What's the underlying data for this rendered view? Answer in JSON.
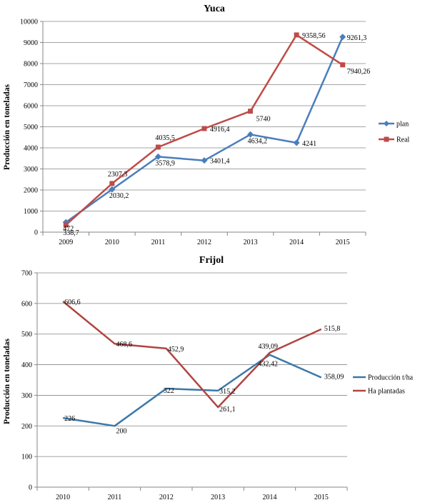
{
  "chart_data": [
    {
      "type": "line",
      "title": "Yuca",
      "xlabel": "",
      "ylabel": "Producción en toneladas",
      "categories": [
        "2009",
        "2010",
        "2011",
        "2012",
        "2013",
        "2014",
        "2015"
      ],
      "ylim": [
        0,
        10000
      ],
      "yticks": [
        "0",
        "1000",
        "2000",
        "3000",
        "4000",
        "5000",
        "6000",
        "7000",
        "8000",
        "9000",
        "10000"
      ],
      "grid": true,
      "legend": "right",
      "series": [
        {
          "name": "plan",
          "color": "#4a7ebb",
          "marker": "diamond",
          "values": [
            472,
            2030.2,
            3578.9,
            3401.4,
            4634.2,
            4241,
            9261.3
          ],
          "labels": [
            "472",
            "2030,2",
            "3578,9",
            "3401,4",
            "4634,2",
            "4241",
            "9261,3"
          ]
        },
        {
          "name": "Real",
          "color": "#be4b48",
          "marker": "square",
          "values": [
            338.7,
            2307.3,
            4035.5,
            4916.4,
            5740,
            9358.56,
            7940.26
          ],
          "labels": [
            "338,7",
            "2307,3",
            "4035,5",
            "4916,4",
            "5740",
            "9358,56",
            "7940,26"
          ]
        }
      ]
    },
    {
      "type": "line",
      "title": "Frijol",
      "xlabel": "",
      "ylabel": "Producción en toneladas",
      "categories": [
        "2010",
        "2011",
        "2012",
        "2013",
        "2014",
        "2015"
      ],
      "ylim": [
        0,
        700
      ],
      "yticks": [
        "0",
        "100",
        "200",
        "300",
        "400",
        "500",
        "600",
        "700"
      ],
      "grid": true,
      "legend": "right",
      "series": [
        {
          "name": "Producción t/ha",
          "color": "#3c78a8",
          "marker": "none",
          "values": [
            226,
            200,
            322,
            315.2,
            432.42,
            358.09
          ],
          "labels": [
            "226",
            "200",
            "322",
            "315,2",
            "432,42",
            "358,09"
          ]
        },
        {
          "name": "Ha plantadas",
          "color": "#b04541",
          "marker": "none",
          "values": [
            606.6,
            468.6,
            452.9,
            261.1,
            439.09,
            515.8
          ],
          "labels": [
            "606,6",
            "468,6",
            "452,9",
            "261,1",
            "439,09",
            "515,8"
          ]
        }
      ]
    }
  ]
}
